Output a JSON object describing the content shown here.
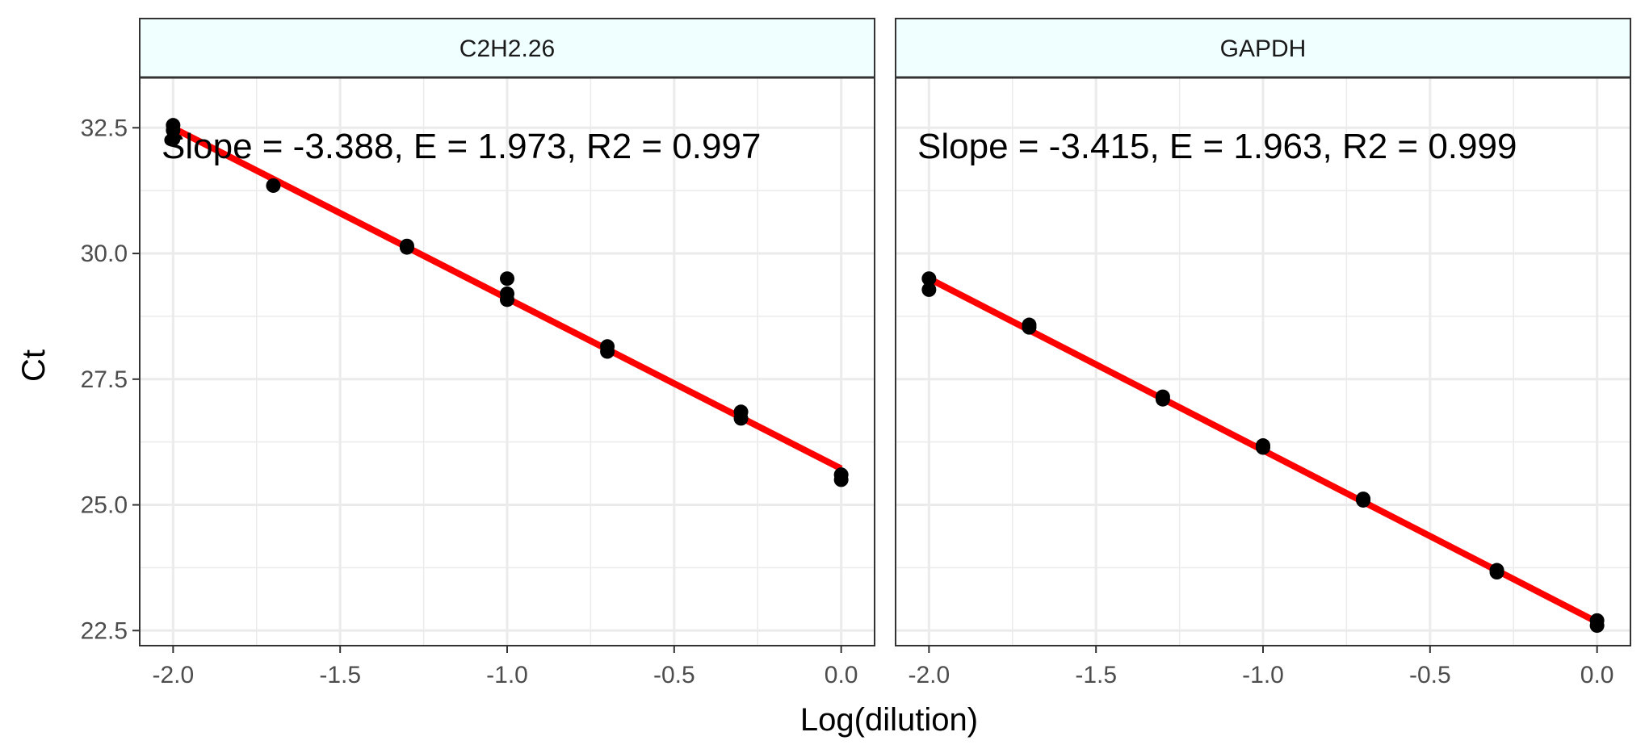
{
  "chart_data": {
    "type": "scatter",
    "xlabel": "Log(dilution)",
    "ylabel": "Ct",
    "xlim": [
      -2.1,
      0.1
    ],
    "ylim": [
      22.2,
      33.5
    ],
    "x_ticks": [
      -2.0,
      -1.5,
      -1.0,
      -0.5,
      0.0
    ],
    "x_tick_labels": [
      "-2.0",
      "-1.5",
      "-1.0",
      "-0.5",
      "0.0"
    ],
    "y_ticks": [
      22.5,
      25.0,
      27.5,
      30.0,
      32.5
    ],
    "y_tick_labels": [
      "22.5",
      "25.0",
      "27.5",
      "30.0",
      "32.5"
    ],
    "grid": true,
    "colors": {
      "points": "#000000",
      "fit_line": "#ff0000",
      "strip_fill": "#f0ffff",
      "grid": "#ebebeb"
    },
    "panels": [
      {
        "strip_label": "C2H2.26",
        "annotation": "Slope = -3.388, E = 1.973,  R2 = 0.997",
        "points": [
          {
            "x": -2.0,
            "y": 32.55
          },
          {
            "x": -2.0,
            "y": 32.45
          },
          {
            "x": -2.0,
            "y": 32.28
          },
          {
            "x": -1.7,
            "y": 31.35
          },
          {
            "x": -1.3,
            "y": 30.15
          },
          {
            "x": -1.3,
            "y": 30.12
          },
          {
            "x": -1.0,
            "y": 29.5
          },
          {
            "x": -1.0,
            "y": 29.2
          },
          {
            "x": -1.0,
            "y": 29.08
          },
          {
            "x": -0.7,
            "y": 28.15
          },
          {
            "x": -0.7,
            "y": 28.05
          },
          {
            "x": -0.3,
            "y": 26.85
          },
          {
            "x": -0.3,
            "y": 26.72
          },
          {
            "x": 0.0,
            "y": 25.6
          },
          {
            "x": 0.0,
            "y": 25.5
          }
        ],
        "fit": {
          "slope": -3.388,
          "intercept": 25.72,
          "x_range": [
            -2.0,
            0.0
          ]
        }
      },
      {
        "strip_label": "GAPDH",
        "annotation": "Slope = -3.415, E = 1.963,  R2 = 0.999",
        "points": [
          {
            "x": -2.0,
            "y": 29.5
          },
          {
            "x": -2.0,
            "y": 29.28
          },
          {
            "x": -1.7,
            "y": 28.58
          },
          {
            "x": -1.7,
            "y": 28.53
          },
          {
            "x": -1.3,
            "y": 27.15
          },
          {
            "x": -1.3,
            "y": 27.1
          },
          {
            "x": -1.0,
            "y": 26.18
          },
          {
            "x": -1.0,
            "y": 26.14
          },
          {
            "x": -0.7,
            "y": 25.12
          },
          {
            "x": -0.7,
            "y": 25.09
          },
          {
            "x": -0.3,
            "y": 23.7
          },
          {
            "x": -0.3,
            "y": 23.66
          },
          {
            "x": 0.0,
            "y": 22.7
          },
          {
            "x": 0.0,
            "y": 22.6
          }
        ],
        "fit": {
          "slope": -3.415,
          "intercept": 22.67,
          "x_range": [
            -2.0,
            0.0
          ]
        }
      }
    ]
  }
}
